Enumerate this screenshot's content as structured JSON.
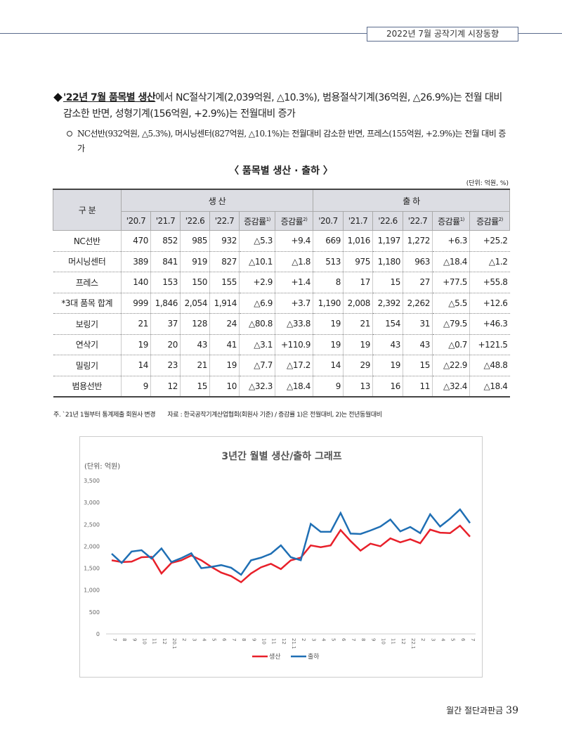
{
  "header": {
    "title": "2022년 7월 공작기계 시장동향"
  },
  "body": {
    "bullet_lead": "'22년 7월 품목별 생산",
    "bullet_rest": "에서 NC절삭기계(2,039억원, △10.3%), 범용절삭기계(36억원, △26.9%)는 전월 대비 감소한 반면, 성형기계(156억원, +2.9%)는 전월대비 증가",
    "sub_bullet": "NC선반(932억원, △5.3%), 머시닝센터(827억원, △10.1%)는 전월대비 감소한 반면, 프레스(155억원, +2.9%)는 전월 대비 증가"
  },
  "table": {
    "title": "〈 품목별 생산 · 출하 〉",
    "unit": "(단위: 억원, %)",
    "corner": "구 분",
    "groups": [
      "생 산",
      "출 하"
    ],
    "columns": [
      {
        "text": "'20.7"
      },
      {
        "text": "'21.7"
      },
      {
        "text": "'22.6"
      },
      {
        "text": "'22.7"
      },
      {
        "text": "증감률",
        "note": "1)"
      },
      {
        "text": "증감률",
        "note": "2)"
      },
      {
        "text": "'20.7"
      },
      {
        "text": "'21.7"
      },
      {
        "text": "'22.6"
      },
      {
        "text": "'22.7"
      },
      {
        "text": "증감률",
        "note": "1)"
      },
      {
        "text": "증감률",
        "note": "2)"
      }
    ],
    "rows": [
      [
        "NC선반",
        "470",
        "852",
        "985",
        "932",
        "△5.3",
        "+9.4",
        "669",
        "1,016",
        "1,197",
        "1,272",
        "+6.3",
        "+25.2"
      ],
      [
        "머시닝센터",
        "389",
        "841",
        "919",
        "827",
        "△10.1",
        "△1.8",
        "513",
        "975",
        "1,180",
        "963",
        "△18.4",
        "△1.2"
      ],
      [
        "프레스",
        "140",
        "153",
        "150",
        "155",
        "+2.9",
        "+1.4",
        "8",
        "17",
        "15",
        "27",
        "+77.5",
        "+55.8"
      ],
      [
        "*3대 품목 합계",
        "999",
        "1,846",
        "2,054",
        "1,914",
        "△6.9",
        "+3.7",
        "1,190",
        "2,008",
        "2,392",
        "2,262",
        "△5.5",
        "+12.6"
      ],
      [
        "보링기",
        "21",
        "37",
        "128",
        "24",
        "△80.8",
        "△33.8",
        "19",
        "21",
        "154",
        "31",
        "△79.5",
        "+46.3"
      ],
      [
        "연삭기",
        "19",
        "20",
        "43",
        "41",
        "△3.1",
        "+110.9",
        "19",
        "19",
        "43",
        "43",
        "△0.7",
        "+121.5"
      ],
      [
        "밀링기",
        "14",
        "23",
        "21",
        "19",
        "△7.7",
        "△17.2",
        "14",
        "29",
        "19",
        "15",
        "△22.9",
        "△48.8"
      ],
      [
        "범용선반",
        "9",
        "12",
        "15",
        "10",
        "△32.3",
        "△18.4",
        "9",
        "13",
        "16",
        "11",
        "△32.4",
        "△18.4"
      ]
    ],
    "note": "주. `21년 1월부터 통계제출 회원사 변경　　자료 : 한국공작기계산업협회(회원사 기준) / 증감률 1)은 전월대비, 2)는 전년동월대비"
  },
  "chart_data": {
    "type": "line",
    "title": "3년간 월별 생산/출하 그래프",
    "unit_label": "(단위: 억원)",
    "categories": [
      "7",
      "8",
      "9",
      "10",
      "11",
      "12",
      "20.1",
      "2",
      "3",
      "4",
      "5",
      "6",
      "7",
      "8",
      "9",
      "10",
      "11",
      "12",
      "21.1",
      "2",
      "3",
      "4",
      "5",
      "6",
      "7",
      "8",
      "9",
      "10",
      "11",
      "12",
      "22.1",
      "2",
      "3",
      "4",
      "5",
      "6",
      "7"
    ],
    "series": [
      {
        "name": "생산",
        "color": "#e8202a",
        "values": [
          1680,
          1640,
          1650,
          1750,
          1760,
          1380,
          1620,
          1680,
          1790,
          1680,
          1530,
          1400,
          1320,
          1180,
          1380,
          1520,
          1600,
          1480,
          1680,
          1740,
          2020,
          1980,
          2020,
          2370,
          2120,
          1900,
          2060,
          2000,
          2180,
          2090,
          2160,
          2070,
          2380,
          2310,
          2300,
          2470,
          2220
        ]
      },
      {
        "name": "출하",
        "color": "#1f6fb4",
        "values": [
          1830,
          1620,
          1880,
          1910,
          1720,
          1950,
          1640,
          1730,
          1840,
          1500,
          1530,
          1570,
          1510,
          1350,
          1680,
          1740,
          1830,
          2020,
          1750,
          1680,
          2510,
          2330,
          2330,
          2760,
          2290,
          2280,
          2360,
          2450,
          2610,
          2340,
          2440,
          2300,
          2730,
          2450,
          2630,
          2840,
          2530
        ]
      }
    ],
    "ylim": [
      0,
      3500
    ],
    "yticks": [
      0,
      {
        "value": 500,
        "label": "500"
      },
      {
        "value": 1000,
        "label": "1,000"
      },
      {
        "value": 1500,
        "label": "1,500"
      },
      {
        "value": 2000,
        "label": "2,000"
      },
      {
        "value": 2500,
        "label": "2,500"
      },
      {
        "value": 3000,
        "label": "3,000"
      },
      {
        "value": 3500,
        "label": "3,500"
      }
    ],
    "legend": "bottom",
    "grid": false
  },
  "footer": {
    "magazine": "월간 절단과판금",
    "page": "39"
  }
}
